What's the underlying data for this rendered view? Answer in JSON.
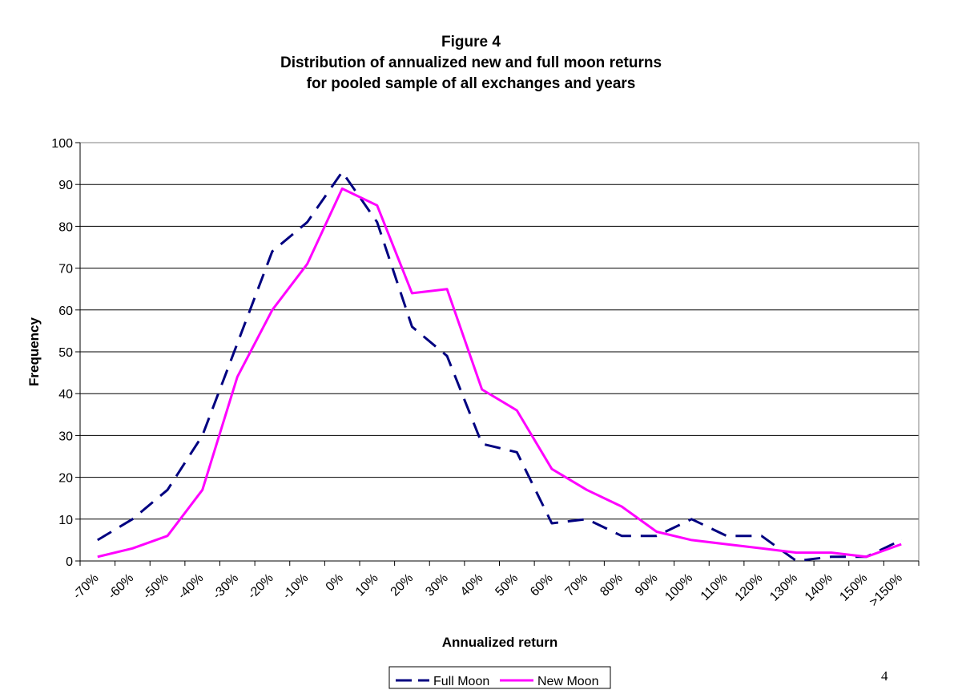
{
  "chart_data": {
    "type": "line",
    "title": [
      "Figure 4",
      "Distribution of annualized new and full moon returns",
      "for pooled sample of all exchanges and years"
    ],
    "xlabel": "Annualized return",
    "ylabel": "Frequency",
    "ylim": [
      0,
      100
    ],
    "yticks": [
      0,
      10,
      20,
      30,
      40,
      50,
      60,
      70,
      80,
      90,
      100
    ],
    "grid": "horizontal",
    "legend_position": "bottom-center",
    "categories": [
      "-70%",
      "-60%",
      "-50%",
      "-40%",
      "-30%",
      "-20%",
      "-10%",
      "0%",
      "10%",
      "20%",
      "30%",
      "40%",
      "50%",
      "60%",
      "70%",
      "80%",
      "90%",
      "100%",
      "110%",
      "120%",
      "130%",
      "140%",
      "150%",
      ">150%"
    ],
    "series": [
      {
        "name": "Full Moon",
        "style": "dashed",
        "color": "#000080",
        "values": [
          5,
          10,
          17,
          30,
          52,
          74,
          81,
          93,
          81,
          56,
          49,
          28,
          26,
          9,
          10,
          6,
          6,
          10,
          6,
          6,
          0,
          1,
          1,
          5
        ]
      },
      {
        "name": "New Moon",
        "style": "solid",
        "color": "#FF00FF",
        "values": [
          1,
          3,
          6,
          17,
          44,
          60,
          71,
          89,
          85,
          64,
          65,
          41,
          36,
          22,
          17,
          13,
          7,
          5,
          4,
          3,
          2,
          2,
          1,
          4
        ]
      }
    ]
  },
  "page_number": "4"
}
